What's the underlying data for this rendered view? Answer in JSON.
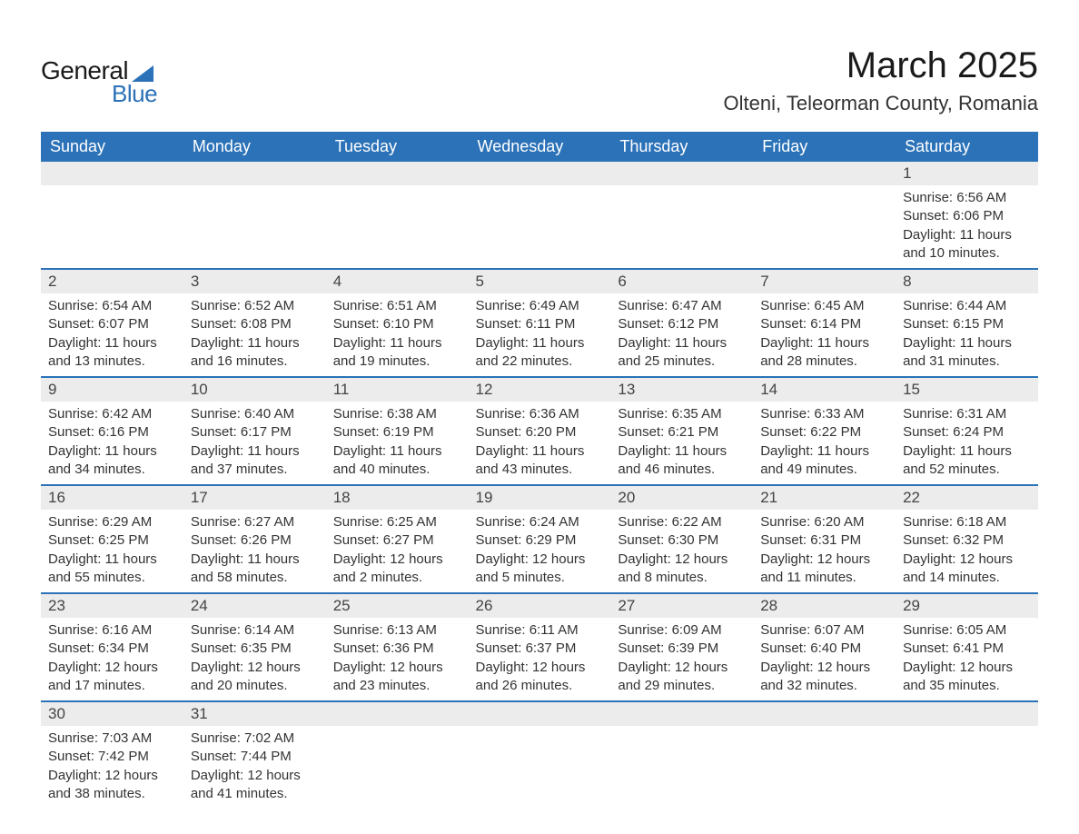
{
  "brand": {
    "line1": "General",
    "line2": "Blue"
  },
  "title": "March 2025",
  "location": "Olteni, Teleorman County, Romania",
  "colors": {
    "header_bg": "#2b72b8",
    "header_text": "#ffffff",
    "daynum_bg": "#ececec",
    "border": "#2b72b8",
    "body_text": "#333333",
    "page_bg": "#ffffff"
  },
  "weekdays": [
    "Sunday",
    "Monday",
    "Tuesday",
    "Wednesday",
    "Thursday",
    "Friday",
    "Saturday"
  ],
  "weeks": [
    [
      null,
      null,
      null,
      null,
      null,
      null,
      {
        "d": "1",
        "sr": "Sunrise: 6:56 AM",
        "ss": "Sunset: 6:06 PM",
        "dl1": "Daylight: 11 hours",
        "dl2": "and 10 minutes."
      }
    ],
    [
      {
        "d": "2",
        "sr": "Sunrise: 6:54 AM",
        "ss": "Sunset: 6:07 PM",
        "dl1": "Daylight: 11 hours",
        "dl2": "and 13 minutes."
      },
      {
        "d": "3",
        "sr": "Sunrise: 6:52 AM",
        "ss": "Sunset: 6:08 PM",
        "dl1": "Daylight: 11 hours",
        "dl2": "and 16 minutes."
      },
      {
        "d": "4",
        "sr": "Sunrise: 6:51 AM",
        "ss": "Sunset: 6:10 PM",
        "dl1": "Daylight: 11 hours",
        "dl2": "and 19 minutes."
      },
      {
        "d": "5",
        "sr": "Sunrise: 6:49 AM",
        "ss": "Sunset: 6:11 PM",
        "dl1": "Daylight: 11 hours",
        "dl2": "and 22 minutes."
      },
      {
        "d": "6",
        "sr": "Sunrise: 6:47 AM",
        "ss": "Sunset: 6:12 PM",
        "dl1": "Daylight: 11 hours",
        "dl2": "and 25 minutes."
      },
      {
        "d": "7",
        "sr": "Sunrise: 6:45 AM",
        "ss": "Sunset: 6:14 PM",
        "dl1": "Daylight: 11 hours",
        "dl2": "and 28 minutes."
      },
      {
        "d": "8",
        "sr": "Sunrise: 6:44 AM",
        "ss": "Sunset: 6:15 PM",
        "dl1": "Daylight: 11 hours",
        "dl2": "and 31 minutes."
      }
    ],
    [
      {
        "d": "9",
        "sr": "Sunrise: 6:42 AM",
        "ss": "Sunset: 6:16 PM",
        "dl1": "Daylight: 11 hours",
        "dl2": "and 34 minutes."
      },
      {
        "d": "10",
        "sr": "Sunrise: 6:40 AM",
        "ss": "Sunset: 6:17 PM",
        "dl1": "Daylight: 11 hours",
        "dl2": "and 37 minutes."
      },
      {
        "d": "11",
        "sr": "Sunrise: 6:38 AM",
        "ss": "Sunset: 6:19 PM",
        "dl1": "Daylight: 11 hours",
        "dl2": "and 40 minutes."
      },
      {
        "d": "12",
        "sr": "Sunrise: 6:36 AM",
        "ss": "Sunset: 6:20 PM",
        "dl1": "Daylight: 11 hours",
        "dl2": "and 43 minutes."
      },
      {
        "d": "13",
        "sr": "Sunrise: 6:35 AM",
        "ss": "Sunset: 6:21 PM",
        "dl1": "Daylight: 11 hours",
        "dl2": "and 46 minutes."
      },
      {
        "d": "14",
        "sr": "Sunrise: 6:33 AM",
        "ss": "Sunset: 6:22 PM",
        "dl1": "Daylight: 11 hours",
        "dl2": "and 49 minutes."
      },
      {
        "d": "15",
        "sr": "Sunrise: 6:31 AM",
        "ss": "Sunset: 6:24 PM",
        "dl1": "Daylight: 11 hours",
        "dl2": "and 52 minutes."
      }
    ],
    [
      {
        "d": "16",
        "sr": "Sunrise: 6:29 AM",
        "ss": "Sunset: 6:25 PM",
        "dl1": "Daylight: 11 hours",
        "dl2": "and 55 minutes."
      },
      {
        "d": "17",
        "sr": "Sunrise: 6:27 AM",
        "ss": "Sunset: 6:26 PM",
        "dl1": "Daylight: 11 hours",
        "dl2": "and 58 minutes."
      },
      {
        "d": "18",
        "sr": "Sunrise: 6:25 AM",
        "ss": "Sunset: 6:27 PM",
        "dl1": "Daylight: 12 hours",
        "dl2": "and 2 minutes."
      },
      {
        "d": "19",
        "sr": "Sunrise: 6:24 AM",
        "ss": "Sunset: 6:29 PM",
        "dl1": "Daylight: 12 hours",
        "dl2": "and 5 minutes."
      },
      {
        "d": "20",
        "sr": "Sunrise: 6:22 AM",
        "ss": "Sunset: 6:30 PM",
        "dl1": "Daylight: 12 hours",
        "dl2": "and 8 minutes."
      },
      {
        "d": "21",
        "sr": "Sunrise: 6:20 AM",
        "ss": "Sunset: 6:31 PM",
        "dl1": "Daylight: 12 hours",
        "dl2": "and 11 minutes."
      },
      {
        "d": "22",
        "sr": "Sunrise: 6:18 AM",
        "ss": "Sunset: 6:32 PM",
        "dl1": "Daylight: 12 hours",
        "dl2": "and 14 minutes."
      }
    ],
    [
      {
        "d": "23",
        "sr": "Sunrise: 6:16 AM",
        "ss": "Sunset: 6:34 PM",
        "dl1": "Daylight: 12 hours",
        "dl2": "and 17 minutes."
      },
      {
        "d": "24",
        "sr": "Sunrise: 6:14 AM",
        "ss": "Sunset: 6:35 PM",
        "dl1": "Daylight: 12 hours",
        "dl2": "and 20 minutes."
      },
      {
        "d": "25",
        "sr": "Sunrise: 6:13 AM",
        "ss": "Sunset: 6:36 PM",
        "dl1": "Daylight: 12 hours",
        "dl2": "and 23 minutes."
      },
      {
        "d": "26",
        "sr": "Sunrise: 6:11 AM",
        "ss": "Sunset: 6:37 PM",
        "dl1": "Daylight: 12 hours",
        "dl2": "and 26 minutes."
      },
      {
        "d": "27",
        "sr": "Sunrise: 6:09 AM",
        "ss": "Sunset: 6:39 PM",
        "dl1": "Daylight: 12 hours",
        "dl2": "and 29 minutes."
      },
      {
        "d": "28",
        "sr": "Sunrise: 6:07 AM",
        "ss": "Sunset: 6:40 PM",
        "dl1": "Daylight: 12 hours",
        "dl2": "and 32 minutes."
      },
      {
        "d": "29",
        "sr": "Sunrise: 6:05 AM",
        "ss": "Sunset: 6:41 PM",
        "dl1": "Daylight: 12 hours",
        "dl2": "and 35 minutes."
      }
    ],
    [
      {
        "d": "30",
        "sr": "Sunrise: 7:03 AM",
        "ss": "Sunset: 7:42 PM",
        "dl1": "Daylight: 12 hours",
        "dl2": "and 38 minutes."
      },
      {
        "d": "31",
        "sr": "Sunrise: 7:02 AM",
        "ss": "Sunset: 7:44 PM",
        "dl1": "Daylight: 12 hours",
        "dl2": "and 41 minutes."
      },
      null,
      null,
      null,
      null,
      null
    ]
  ]
}
